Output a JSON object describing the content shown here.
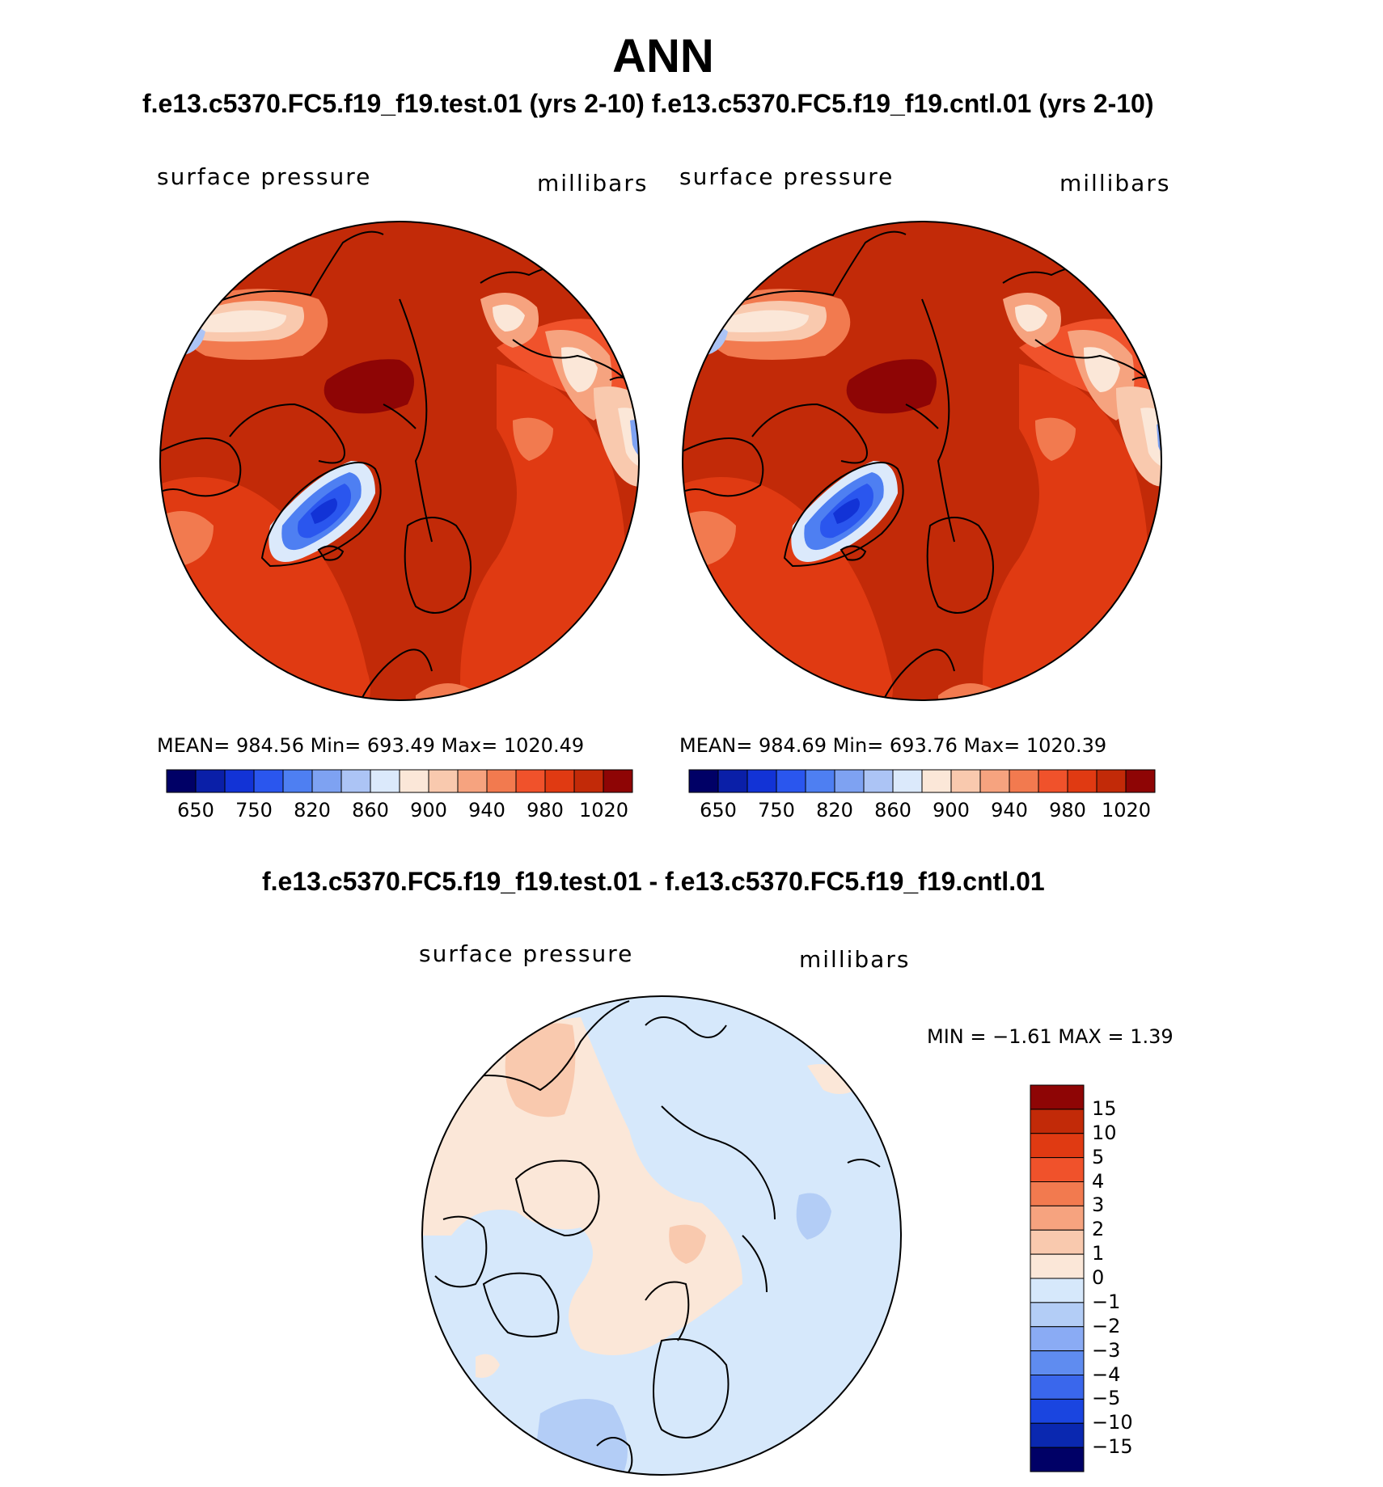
{
  "title": "ANN",
  "subtitle": "f.e13.c5370.FC5.f19_f19.test.01 (yrs 2-10) f.e13.c5370.FC5.f19_f19.cntl.01 (yrs 2-10)",
  "diff_title": "f.e13.c5370.FC5.f19_f19.test.01 - f.e13.c5370.FC5.f19_f19.cntl.01",
  "panels": [
    {
      "left_label": "surface pressure",
      "right_label": "millibars",
      "stats": "MEAN= 984.56   Min= 693.49   Max= 1020.49"
    },
    {
      "left_label": "surface pressure",
      "right_label": "millibars",
      "stats": "MEAN= 984.69   Min= 693.76   Max= 1020.39"
    },
    {
      "left_label": "surface pressure",
      "right_label": "millibars",
      "stats": "MIN =   −1.61  MAX =     1.39"
    }
  ],
  "chart_data": [
    {
      "type": "heatmap",
      "projection": "north-polar-stereographic",
      "variable": "surface pressure",
      "units": "millibars",
      "mean": 984.56,
      "min": 693.49,
      "max": 1020.49,
      "colorbar": {
        "orientation": "horizontal",
        "levels_labeled": [
          "650",
          "750",
          "820",
          "860",
          "900",
          "940",
          "980",
          "1020"
        ],
        "colors": [
          "#000066",
          "#0a1fa8",
          "#1233d6",
          "#2a56ee",
          "#4e7ff2",
          "#7ea2f2",
          "#acc4f5",
          "#dbe9fb",
          "#fbe7d8",
          "#f9c9ae",
          "#f6a37f",
          "#f27a4f",
          "#f0522b",
          "#e03a12",
          "#c22a08",
          "#8e0505"
        ]
      }
    },
    {
      "type": "heatmap",
      "projection": "north-polar-stereographic",
      "variable": "surface pressure",
      "units": "millibars",
      "mean": 984.69,
      "min": 693.76,
      "max": 1020.39,
      "colorbar": {
        "orientation": "horizontal",
        "levels_labeled": [
          "650",
          "750",
          "820",
          "860",
          "900",
          "940",
          "980",
          "1020"
        ],
        "colors": [
          "#000066",
          "#0a1fa8",
          "#1233d6",
          "#2a56ee",
          "#4e7ff2",
          "#7ea2f2",
          "#acc4f5",
          "#dbe9fb",
          "#fbe7d8",
          "#f9c9ae",
          "#f6a37f",
          "#f27a4f",
          "#f0522b",
          "#e03a12",
          "#c22a08",
          "#8e0505"
        ]
      }
    },
    {
      "type": "heatmap",
      "projection": "north-polar-stereographic",
      "variable": "surface pressure",
      "units": "millibars",
      "min": -1.61,
      "max": 1.39,
      "colorbar": {
        "orientation": "vertical",
        "levels": [
          "15",
          "10",
          "5",
          "4",
          "3",
          "2",
          "1",
          "0",
          "−1",
          "−2",
          "−3",
          "−4",
          "−5",
          "−10",
          "−15"
        ],
        "colors": [
          "#8e0505",
          "#c22a08",
          "#e03a12",
          "#f0522b",
          "#f27a4f",
          "#f6a37f",
          "#f9c9ae",
          "#fbe7d8",
          "#d6e8fb",
          "#b3cdf6",
          "#8aabf4",
          "#5f8cf0",
          "#3a67ec",
          "#1a45e0",
          "#0a28b0",
          "#000066"
        ]
      }
    }
  ]
}
